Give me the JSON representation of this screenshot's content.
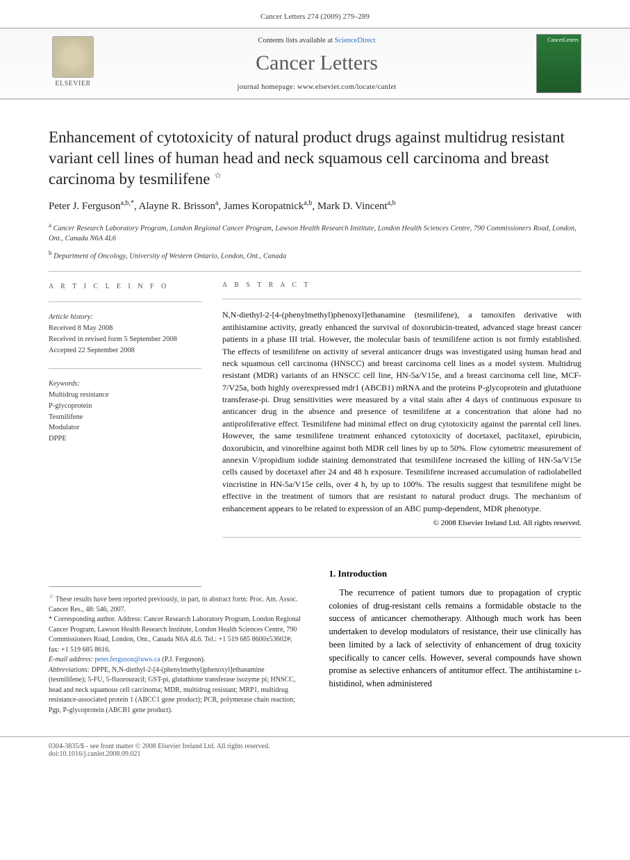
{
  "runningHead": "Cancer Letters 274 (2009) 279–289",
  "masthead": {
    "contentsLine": "Contents lists available at",
    "scienceDirect": "ScienceDirect",
    "journalTitle": "Cancer Letters",
    "homepageLabel": "journal homepage:",
    "homepageUrl": "www.elsevier.com/locate/canlet",
    "elsevier": "ELSEVIER",
    "coverText": "CancerLetters"
  },
  "article": {
    "title": "Enhancement of cytotoxicity of natural product drugs against multidrug resistant variant cell lines of human head and neck squamous cell carcinoma and breast carcinoma by tesmilifene",
    "starGlyph": "☆",
    "authors": [
      {
        "name": "Peter J. Ferguson",
        "marks": "a,b,*"
      },
      {
        "name": "Alayne R. Brisson",
        "marks": "a"
      },
      {
        "name": "James Koropatnick",
        "marks": "a,b"
      },
      {
        "name": "Mark D. Vincent",
        "marks": "a,b"
      }
    ],
    "affiliations": [
      {
        "mark": "a",
        "text": "Cancer Research Laboratory Program, London Regional Cancer Program, Lawson Health Research Institute, London Health Sciences Centre, 790 Commissioners Road, London, Ont., Canada N6A 4L6"
      },
      {
        "mark": "b",
        "text": "Department of Oncology, University of Western Ontario, London, Ont., Canada"
      }
    ]
  },
  "info": {
    "heading": "A R T I C L E   I N F O",
    "historyLabel": "Article history:",
    "history": [
      "Received 8 May 2008",
      "Received in revised form 5 September 2008",
      "Accepted 22 September 2008"
    ],
    "keywordsLabel": "Keywords:",
    "keywords": [
      "Multidrug resistance",
      "P-glycoprotein",
      "Tesmilifene",
      "Modulator",
      "DPPE"
    ]
  },
  "abstract": {
    "heading": "A B S T R A C T",
    "body": "N,N-diethyl-2-[4-(phenylmethyl)phenoxyl]ethanamine (tesmilifene), a tamoxifen derivative with antihistamine activity, greatly enhanced the survival of doxorubicin-treated, advanced stage breast cancer patients in a phase III trial. However, the molecular basis of tesmilifene action is not firmly established. The effects of tesmilifene on activity of several anticancer drugs was investigated using human head and neck squamous cell carcinoma (HNSCC) and breast carcinoma cell lines as a model system. Multidrug resistant (MDR) variants of an HNSCC cell line, HN-5a/V15e, and a breast carcinoma cell line, MCF-7/V25a, both highly overexpressed mdr1 (ABCB1) mRNA and the proteins P-glycoprotein and glutathione transferase-pi. Drug sensitivities were measured by a vital stain after 4 days of continuous exposure to anticancer drug in the absence and presence of tesmilifene at a concentration that alone had no antiproliferative effect. Tesmilifene had minimal effect on drug cytotoxicity against the parental cell lines. However, the same tesmilifene treatment enhanced cytotoxicity of docetaxel, paclitaxel, epirubicin, doxorubicin, and vinorelbine against both MDR cell lines by up to 50%. Flow cytometric measurement of annexin V/propidium iodide staining demonstrated that tesmilifene increased the killing of HN-5a/V15e cells caused by docetaxel after 24 and 48 h exposure. Tesmilifene increased accumulation of radiolabelled vincristine in HN-5a/V15e cells, over 4 h, by up to 100%. The results suggest that tesmilifene might be effective in the treatment of tumors that are resistant to natural product drugs. The mechanism of enhancement appears to be related to expression of an ABC pump-dependent, MDR phenotype.",
    "copyright": "© 2008 Elsevier Ireland Ltd. All rights reserved."
  },
  "footnotes": {
    "star": "These results have been reported previously, in part, in abstract form: Proc. Am. Assoc. Cancer Res., 48: 546, 2007.",
    "correspondingLabel": "* Corresponding author.",
    "corresponding": "Address: Cancer Research Laboratory Program, London Regional Cancer Program, Lawson Health Research Institute, London Health Sciences Centre, 790 Commissioners Road, London, Ont., Canada N6A 4L6. Tel.: +1 519 685 8600x53602#; fax: +1 519 685 8616.",
    "emailLabel": "E-mail address:",
    "email": "peter.ferguson@uwo.ca",
    "emailSuffix": "(P.J. Ferguson).",
    "abbrevLabel": "Abbreviations:",
    "abbrev": "DPPE, N,N-diethyl-2-[4-(phenylmethyl)phenoxyl]ethanamine (tesmilifene); 5-FU, 5-fluorouracil; GST-pi, glutathione transferase isozyme pi; HNSCC, head and neck squamous cell carcinoma; MDR, multidrug resistant; MRP1, multidrug resistance-associated protein 1 (ABCC1 gene product); PCR, polymerase chain reaction; Pgp, P-glycoprotein (ABCB1 gene product)."
  },
  "intro": {
    "heading": "1. Introduction",
    "body": "The recurrence of patient tumors due to propagation of cryptic colonies of drug-resistant cells remains a formidable obstacle to the success of anticancer chemotherapy. Although much work has been undertaken to develop modulators of resistance, their use clinically has been limited by a lack of selectivity of enhancement of drug toxicity specifically to cancer cells. However, several compounds have shown promise as selective enhancers of antitumor effect. The antihistamine ʟ-histidinol, when administered"
  },
  "footer": {
    "line1": "0304-3835/$ - see front matter © 2008 Elsevier Ireland Ltd. All rights reserved.",
    "line2": "doi:10.1016/j.canlet.2008.09.021"
  },
  "colors": {
    "link": "#2a6ec2",
    "rule": "#bbbbbb",
    "journalTitle": "#5a5a5a"
  }
}
